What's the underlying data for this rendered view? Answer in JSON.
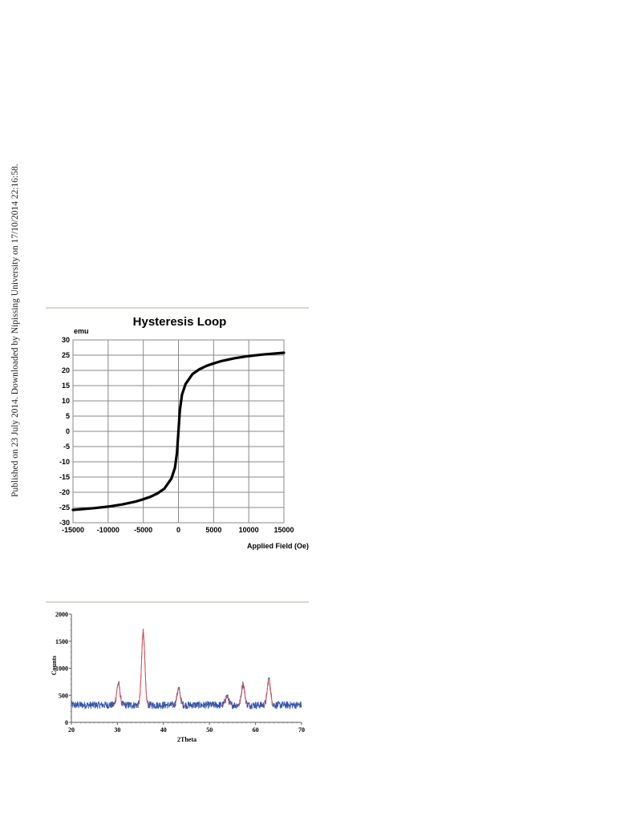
{
  "side_note": "Published on 23 July 2014. Downloaded by Nipissing University on 17/10/2014 22:16:58.",
  "chart_data": [
    {
      "type": "line",
      "title": "Hysteresis Loop",
      "ylabel": "emu",
      "xlabel": "Applied Field (Oe)",
      "xlim": [
        -15000,
        15000
      ],
      "ylim": [
        -30,
        30
      ],
      "xticks": [
        -15000,
        -10000,
        -5000,
        0,
        5000,
        10000,
        15000
      ],
      "yticks": [
        30,
        25,
        20,
        15,
        10,
        5,
        0,
        -5,
        -10,
        -15,
        -20,
        -25,
        -30
      ],
      "grid": true,
      "line_color": "#000000",
      "series": [
        {
          "x": [
            -15000,
            -12000,
            -10000,
            -8000,
            -6000,
            -5000,
            -4000,
            -3000,
            -2000,
            -1000,
            -500,
            -200,
            0,
            200,
            500,
            1000,
            2000,
            3000,
            4000,
            5000,
            6000,
            8000,
            10000,
            12000,
            15000
          ],
          "y": [
            -25.8,
            -25.2,
            -24.7,
            -24.0,
            -23.0,
            -22.3,
            -21.5,
            -20.4,
            -18.8,
            -15.5,
            -12.0,
            -7.0,
            0,
            7.0,
            12.0,
            15.5,
            18.8,
            20.4,
            21.5,
            22.3,
            23.0,
            24.0,
            24.7,
            25.2,
            25.8
          ]
        }
      ]
    },
    {
      "type": "line",
      "title": "",
      "xlabel": "2Theta",
      "ylabel": "Counts",
      "xlim": [
        20,
        70
      ],
      "ylim": [
        0,
        2000
      ],
      "xticks": [
        20,
        30,
        40,
        50,
        60,
        70
      ],
      "yticks": [
        0,
        500,
        1000,
        1500,
        2000
      ],
      "grid": false,
      "line_color": "#3355aa",
      "fit_color": "#e05050",
      "baseline": 320,
      "noise": 70,
      "peaks": [
        {
          "x": 30.2,
          "height": 720
        },
        {
          "x": 35.6,
          "height": 1680
        },
        {
          "x": 43.3,
          "height": 620
        },
        {
          "x": 53.8,
          "height": 480
        },
        {
          "x": 57.3,
          "height": 710
        },
        {
          "x": 62.9,
          "height": 790
        }
      ]
    }
  ]
}
